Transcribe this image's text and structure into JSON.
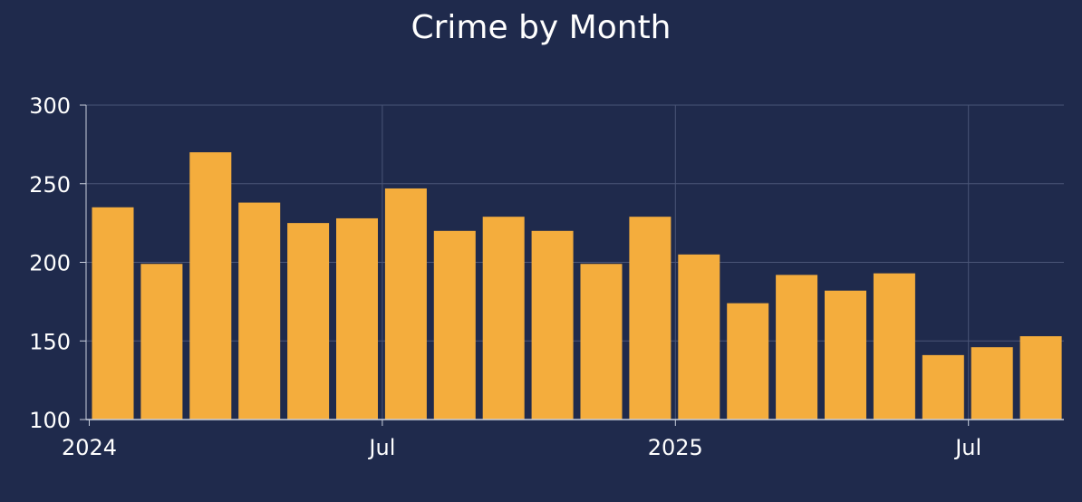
{
  "chart_data": {
    "type": "bar",
    "title": "Crime by Month",
    "xlabel": "",
    "ylabel": "",
    "categories": [
      "2024-01",
      "2024-02",
      "2024-03",
      "2024-04",
      "2024-05",
      "2024-06",
      "2024-07",
      "2024-08",
      "2024-09",
      "2024-10",
      "2024-11",
      "2024-12",
      "2025-01",
      "2025-02",
      "2025-03",
      "2025-04",
      "2025-05",
      "2025-06",
      "2025-07",
      "2025-08"
    ],
    "values": [
      235,
      199,
      270,
      238,
      225,
      228,
      247,
      220,
      229,
      220,
      199,
      229,
      205,
      174,
      192,
      182,
      193,
      141,
      146,
      153
    ],
    "ylim": [
      100,
      300
    ],
    "yticks": [
      "100",
      "150",
      "200",
      "250",
      "300"
    ],
    "xticks": [
      {
        "label": "2024",
        "date": "2024-01"
      },
      {
        "label": "Jul",
        "date": "2024-07"
      },
      {
        "label": "2025",
        "date": "2025-01"
      },
      {
        "label": "Jul",
        "date": "2025-07"
      }
    ],
    "grid": true,
    "colors": {
      "bar": "#f4ad3d",
      "background": "#1f2a4c",
      "grid": "#4a5577",
      "axis": "#c9cfdd",
      "text": "#ffffff"
    }
  }
}
